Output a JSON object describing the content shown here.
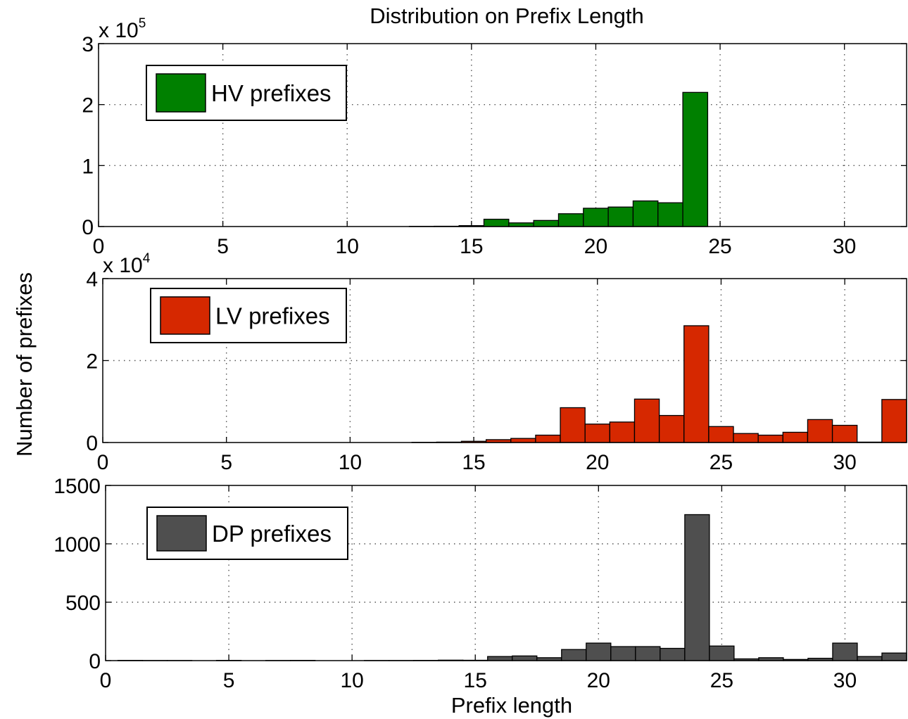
{
  "figure": {
    "title": "Distribution on Prefix Length",
    "xlabel": "Prefix length",
    "ylabel": "Number of prefixes"
  },
  "chart_data": [
    {
      "type": "bar",
      "legend": "HV prefixes",
      "color": "#008000",
      "multiplier_base": "x 10",
      "multiplier_exp": "5",
      "xlim": [
        0,
        32.5
      ],
      "ylim": [
        0,
        3
      ],
      "xticks": [
        "0",
        "5",
        "10",
        "15",
        "20",
        "25",
        "30"
      ],
      "yticks": [
        "0",
        "1",
        "2",
        "3"
      ],
      "x": [
        13,
        14,
        15,
        16,
        17,
        18,
        19,
        20,
        21,
        22,
        23,
        24
      ],
      "values": [
        0.003,
        0.005,
        0.015,
        0.12,
        0.06,
        0.1,
        0.21,
        0.3,
        0.32,
        0.42,
        0.39,
        2.2
      ]
    },
    {
      "type": "bar",
      "legend": "LV prefixes",
      "color": "#d62800",
      "multiplier_base": "x 10",
      "multiplier_exp": "4",
      "xlim": [
        0,
        32.5
      ],
      "ylim": [
        0,
        4
      ],
      "xticks": [
        "0",
        "5",
        "10",
        "15",
        "20",
        "25",
        "30"
      ],
      "yticks": [
        "0",
        "2",
        "4"
      ],
      "x": [
        13,
        14,
        15,
        16,
        17,
        18,
        19,
        20,
        21,
        22,
        23,
        24,
        25,
        26,
        27,
        28,
        29,
        30,
        31,
        32
      ],
      "values": [
        0.005,
        0.01,
        0.03,
        0.07,
        0.1,
        0.18,
        0.85,
        0.45,
        0.5,
        1.06,
        0.66,
        2.85,
        0.39,
        0.22,
        0.18,
        0.25,
        0.56,
        0.42,
        0.01,
        1.05
      ]
    },
    {
      "type": "bar",
      "legend": "DP prefixes",
      "color": "#4f4f4f",
      "xlim": [
        0,
        32.5
      ],
      "ylim": [
        0,
        1500
      ],
      "xticks": [
        "0",
        "5",
        "10",
        "15",
        "20",
        "25",
        "30"
      ],
      "yticks": [
        "0",
        "500",
        "1000",
        "1500"
      ],
      "x": [
        1,
        2,
        3,
        5,
        7,
        8,
        11,
        12,
        13,
        14,
        15,
        16,
        17,
        18,
        19,
        20,
        21,
        22,
        23,
        24,
        25,
        26,
        27,
        28,
        29,
        30,
        31,
        32
      ],
      "values": [
        2,
        1,
        1,
        2,
        1,
        2,
        1,
        1,
        2,
        4,
        3,
        35,
        40,
        25,
        95,
        150,
        120,
        120,
        105,
        1250,
        125,
        15,
        25,
        10,
        20,
        150,
        35,
        65
      ]
    }
  ]
}
